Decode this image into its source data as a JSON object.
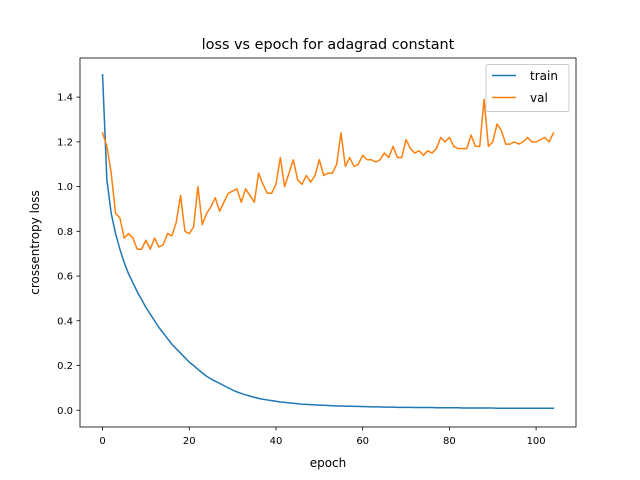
{
  "chart_data": {
    "type": "line",
    "title": "loss vs epoch for adagrad constant",
    "xlabel": "epoch",
    "ylabel": "crossentropy loss",
    "xlim": [
      -5.2,
      109.2
    ],
    "ylim": [
      -0.075,
      1.575
    ],
    "xticks": [
      0,
      20,
      40,
      60,
      80,
      100
    ],
    "yticks": [
      0.0,
      0.2,
      0.4,
      0.6,
      0.8,
      1.0,
      1.2,
      1.4
    ],
    "grid": false,
    "legend_position": "top-right",
    "series": [
      {
        "name": "train",
        "color": "#1f77b4",
        "x": [
          0,
          1,
          2,
          3,
          4,
          5,
          6,
          7,
          8,
          9,
          10,
          11,
          12,
          13,
          14,
          15,
          16,
          17,
          18,
          19,
          20,
          21,
          22,
          23,
          24,
          25,
          26,
          27,
          28,
          29,
          30,
          31,
          32,
          33,
          34,
          35,
          36,
          37,
          38,
          39,
          40,
          41,
          42,
          43,
          44,
          45,
          46,
          47,
          48,
          49,
          50,
          51,
          52,
          53,
          54,
          55,
          56,
          57,
          58,
          59,
          60,
          61,
          62,
          63,
          64,
          65,
          66,
          67,
          68,
          69,
          70,
          71,
          72,
          73,
          74,
          75,
          76,
          77,
          78,
          79,
          80,
          81,
          82,
          83,
          84,
          85,
          86,
          87,
          88,
          89,
          90,
          91,
          92,
          93,
          94,
          95,
          96,
          97,
          98,
          99,
          100,
          101,
          102,
          103,
          104
        ],
        "y": [
          1.5,
          1.03,
          0.88,
          0.79,
          0.72,
          0.66,
          0.61,
          0.57,
          0.53,
          0.495,
          0.46,
          0.43,
          0.4,
          0.37,
          0.345,
          0.32,
          0.295,
          0.275,
          0.255,
          0.235,
          0.215,
          0.2,
          0.183,
          0.167,
          0.152,
          0.14,
          0.13,
          0.12,
          0.11,
          0.1,
          0.09,
          0.082,
          0.075,
          0.069,
          0.063,
          0.058,
          0.053,
          0.049,
          0.046,
          0.043,
          0.04,
          0.037,
          0.035,
          0.033,
          0.031,
          0.029,
          0.027,
          0.026,
          0.025,
          0.024,
          0.023,
          0.022,
          0.021,
          0.02,
          0.019,
          0.019,
          0.018,
          0.018,
          0.017,
          0.017,
          0.016,
          0.016,
          0.015,
          0.015,
          0.015,
          0.014,
          0.014,
          0.014,
          0.013,
          0.013,
          0.013,
          0.013,
          0.012,
          0.012,
          0.012,
          0.012,
          0.012,
          0.011,
          0.011,
          0.011,
          0.011,
          0.011,
          0.011,
          0.01,
          0.01,
          0.01,
          0.01,
          0.01,
          0.01,
          0.01,
          0.01,
          0.009,
          0.009,
          0.009,
          0.009,
          0.009,
          0.009,
          0.009,
          0.009,
          0.009,
          0.009,
          0.009,
          0.009,
          0.009,
          0.009
        ]
      },
      {
        "name": "val",
        "color": "#ff7f0e",
        "x": [
          0,
          1,
          2,
          3,
          4,
          5,
          6,
          7,
          8,
          9,
          10,
          11,
          12,
          13,
          14,
          15,
          16,
          17,
          18,
          19,
          20,
          21,
          22,
          23,
          24,
          25,
          26,
          27,
          28,
          29,
          30,
          31,
          32,
          33,
          34,
          35,
          36,
          37,
          38,
          39,
          40,
          41,
          42,
          43,
          44,
          45,
          46,
          47,
          48,
          49,
          50,
          51,
          52,
          53,
          54,
          55,
          56,
          57,
          58,
          59,
          60,
          61,
          62,
          63,
          64,
          65,
          66,
          67,
          68,
          69,
          70,
          71,
          72,
          73,
          74,
          75,
          76,
          77,
          78,
          79,
          80,
          81,
          82,
          83,
          84,
          85,
          86,
          87,
          88,
          89,
          90,
          91,
          92,
          93,
          94,
          95,
          96,
          97,
          98,
          99,
          100,
          101,
          102,
          103,
          104
        ],
        "y": [
          1.24,
          1.18,
          1.06,
          0.88,
          0.86,
          0.77,
          0.79,
          0.77,
          0.72,
          0.72,
          0.76,
          0.72,
          0.77,
          0.73,
          0.74,
          0.79,
          0.78,
          0.84,
          0.96,
          0.8,
          0.79,
          0.82,
          1.0,
          0.83,
          0.88,
          0.91,
          0.95,
          0.89,
          0.93,
          0.97,
          0.98,
          0.99,
          0.93,
          0.99,
          0.96,
          0.93,
          1.06,
          1.01,
          0.97,
          0.97,
          1.01,
          1.13,
          1.0,
          1.06,
          1.12,
          1.03,
          1.01,
          1.05,
          1.02,
          1.05,
          1.12,
          1.05,
          1.06,
          1.06,
          1.1,
          1.24,
          1.09,
          1.13,
          1.09,
          1.1,
          1.14,
          1.12,
          1.12,
          1.11,
          1.12,
          1.15,
          1.13,
          1.18,
          1.13,
          1.13,
          1.21,
          1.17,
          1.15,
          1.16,
          1.14,
          1.16,
          1.15,
          1.17,
          1.22,
          1.2,
          1.22,
          1.18,
          1.17,
          1.17,
          1.17,
          1.23,
          1.18,
          1.18,
          1.39,
          1.18,
          1.2,
          1.28,
          1.25,
          1.19,
          1.19,
          1.2,
          1.19,
          1.2,
          1.22,
          1.2,
          1.2,
          1.21,
          1.22,
          1.2,
          1.24
        ]
      }
    ]
  }
}
